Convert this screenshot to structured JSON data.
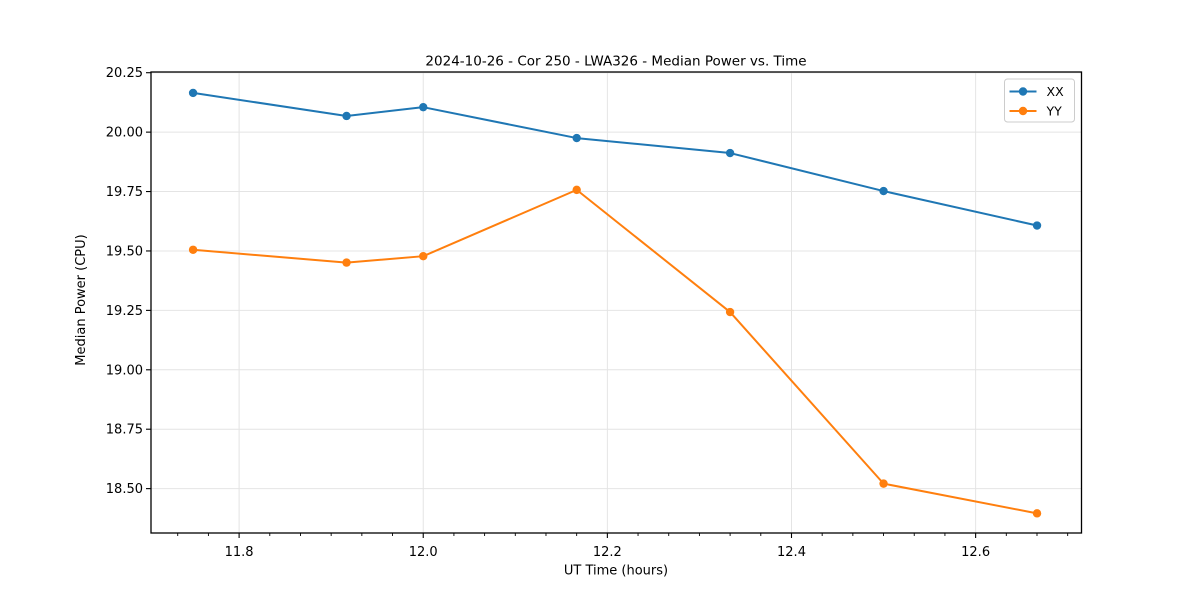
{
  "chart_data": {
    "type": "line",
    "title": "2024-10-26 - Cor 250 - LWA326 - Median Power vs. Time",
    "xlabel": "UT Time (hours)",
    "ylabel": "Median Power (CPU)",
    "xlim": [
      11.7043,
      12.715
    ],
    "ylim": [
      18.3133,
      20.253
    ],
    "x": [
      11.75,
      11.9167,
      12.0,
      12.1667,
      12.3333,
      12.5,
      12.6667
    ],
    "series": [
      {
        "name": "XX",
        "color": "#1f77b4",
        "values": [
          20.165,
          20.068,
          20.105,
          19.975,
          19.912,
          19.752,
          19.607
        ]
      },
      {
        "name": "YY",
        "color": "#ff7f0e",
        "values": [
          19.505,
          19.451,
          19.478,
          19.757,
          19.243,
          18.521,
          18.396
        ]
      }
    ],
    "x_ticks": {
      "values": [
        11.8,
        12.0,
        12.2,
        12.4,
        12.6
      ],
      "labels": [
        "11.8",
        "12.0",
        "12.2",
        "12.4",
        "12.6"
      ],
      "minor_step": 0.0333333
    },
    "y_ticks": {
      "values": [
        18.5,
        18.75,
        19.0,
        19.25,
        19.5,
        19.75,
        20.0,
        20.25
      ],
      "labels": [
        "18.50",
        "18.75",
        "19.00",
        "19.25",
        "19.50",
        "19.75",
        "20.00",
        "20.25"
      ]
    },
    "grid": true,
    "legend": {
      "position": "upper right",
      "entries": [
        "XX",
        "YY"
      ]
    },
    "style": {
      "grid_color": "#e4e4e4",
      "spine_color": "#000000",
      "tick_color": "#000000",
      "legend_border": "#cccccc",
      "legend_bg_opacity": 0.8,
      "marker_radius": 4.2,
      "line_width": 2
    }
  }
}
